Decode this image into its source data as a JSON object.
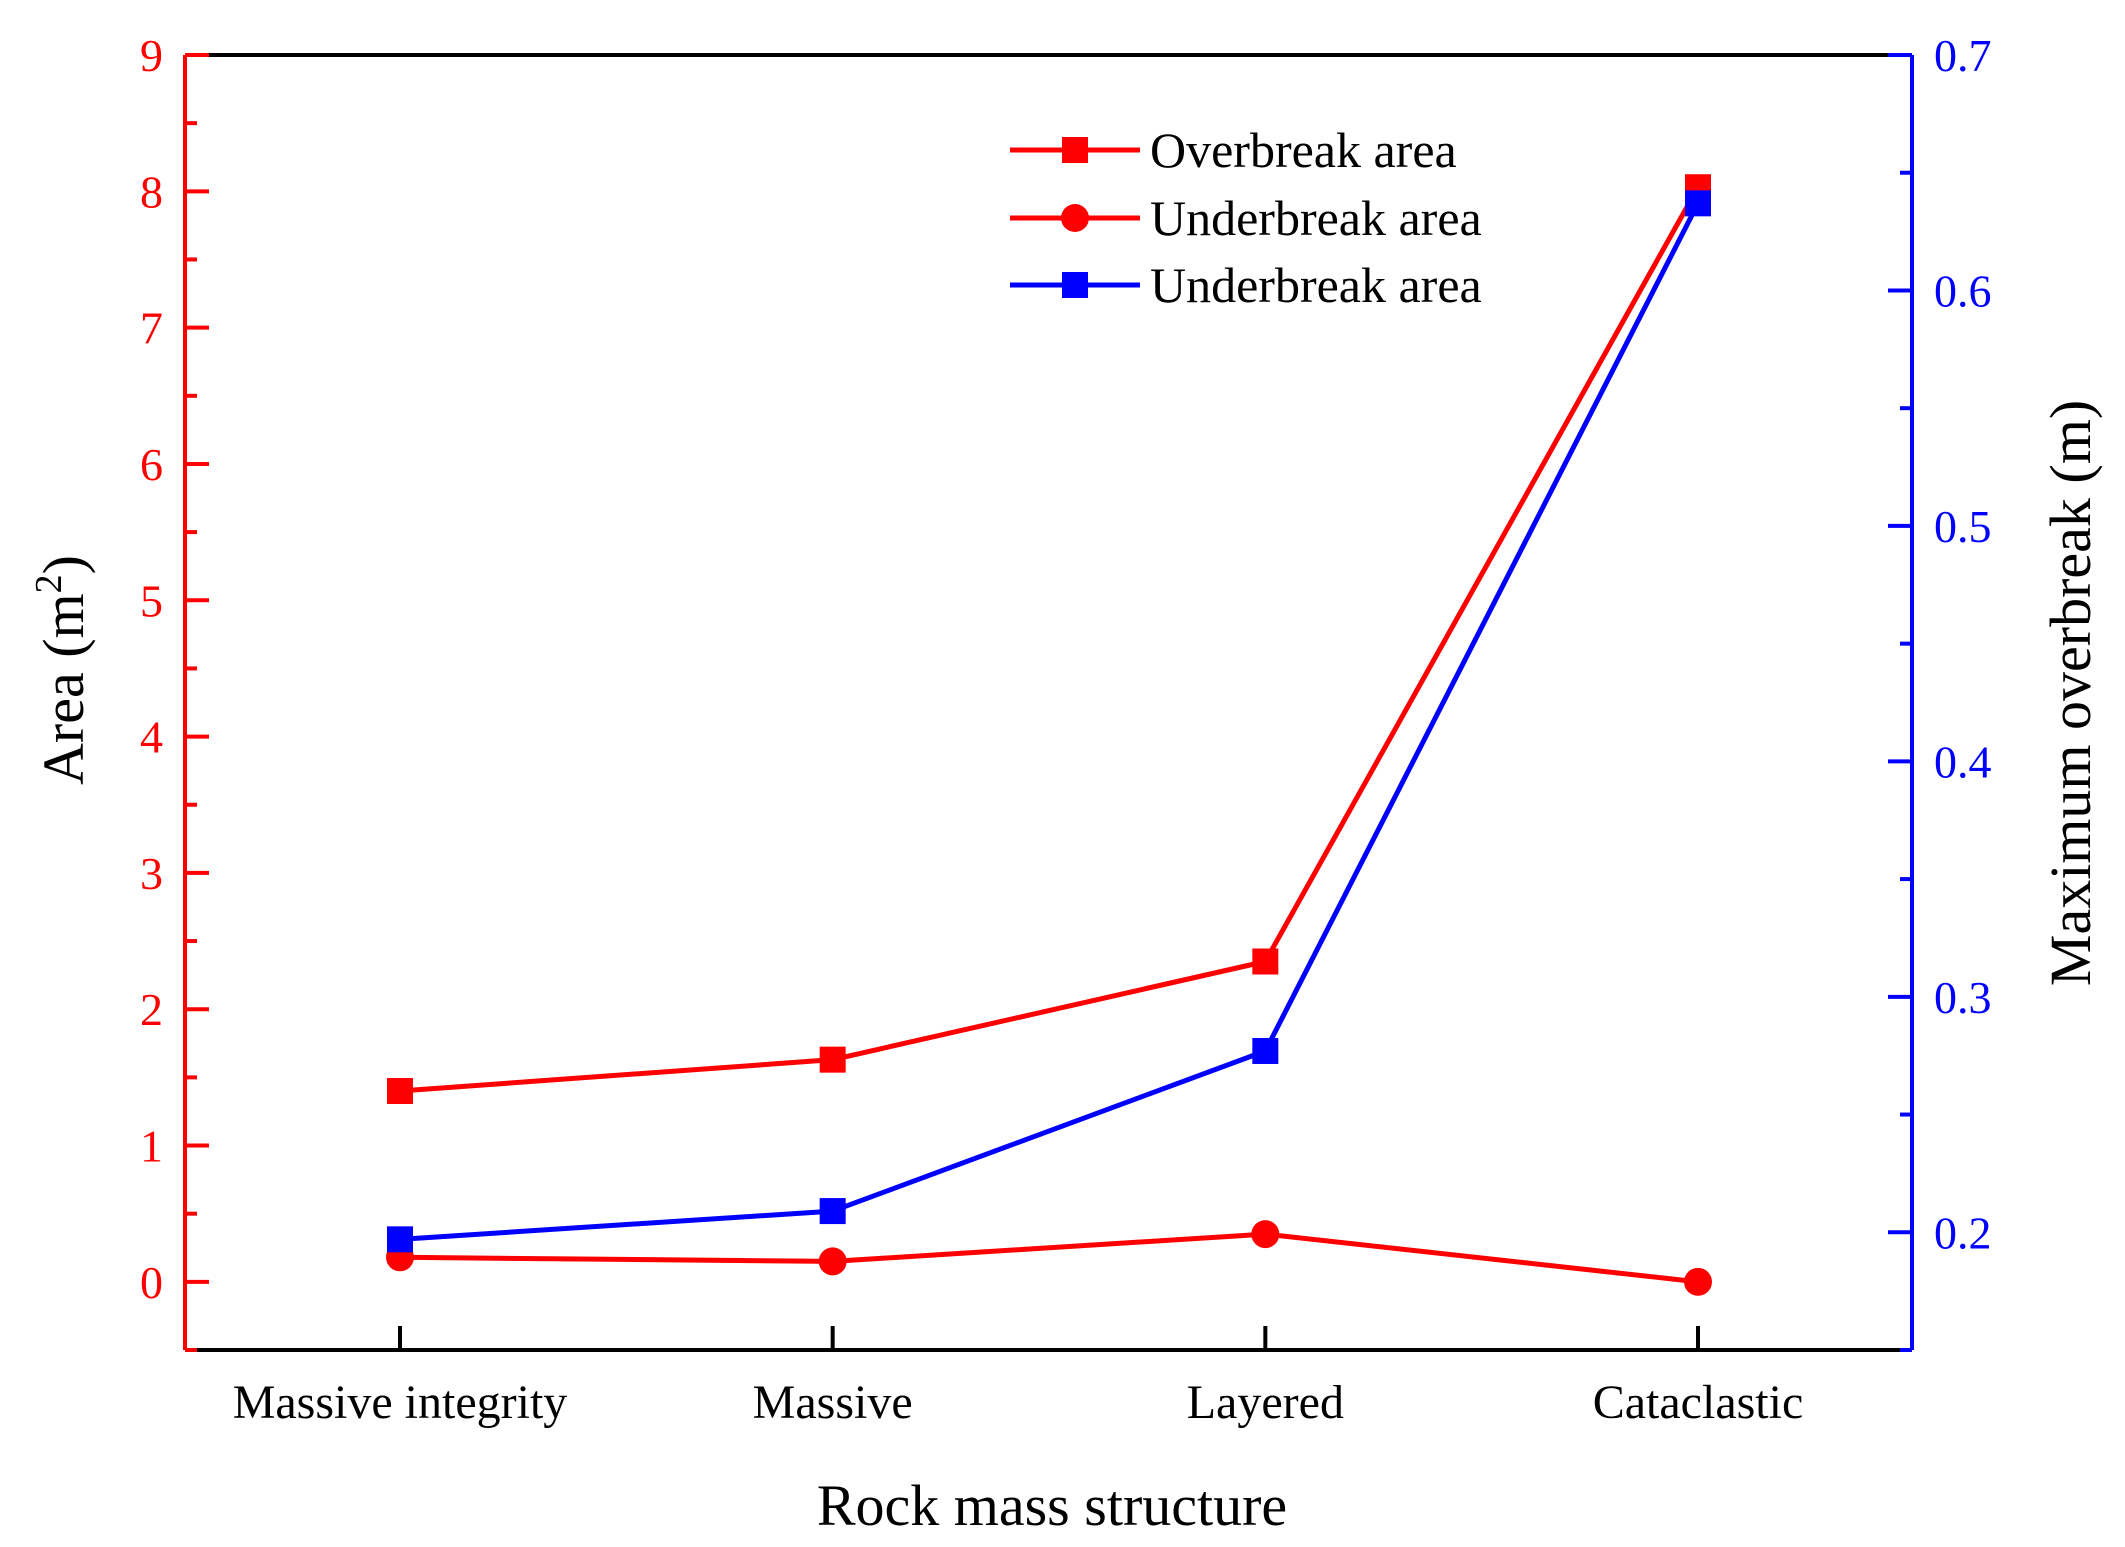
{
  "chart_data": {
    "type": "line",
    "title": "",
    "xlabel": "Rock mass structure",
    "ylabel_left": "Area (m",
    "ylabel_left_sup": "2",
    "ylabel_left_close": ")",
    "ylabel_right": "Maximum overbreak (m)",
    "categories": [
      "Massive integrity",
      "Massive",
      "Layered",
      "Cataclastic"
    ],
    "ylim_left": [
      -0.5,
      9
    ],
    "yticks_left": [
      "0",
      "1",
      "2",
      "3",
      "4",
      "5",
      "6",
      "7",
      "8",
      "9"
    ],
    "ylim_right": [
      0.15,
      0.7
    ],
    "yticks_right": [
      "0.2",
      "0.3",
      "0.4",
      "0.5",
      "0.6",
      "0.7"
    ],
    "grid": false,
    "legend_position": "top-right",
    "colors": {
      "left_axis": "#ff0000",
      "right_axis": "#0000ff",
      "frame": "#000000"
    },
    "series": [
      {
        "name": "Overbreak area",
        "axis": "left",
        "marker": "square",
        "color": "#ff0000",
        "values": [
          1.4,
          1.63,
          2.35,
          8.03
        ]
      },
      {
        "name": "Underbreak area",
        "axis": "left",
        "marker": "circle",
        "color": "#ff0000",
        "values": [
          0.18,
          0.15,
          0.35,
          0.0
        ]
      },
      {
        "name": "Underbreak area",
        "axis": "right",
        "marker": "square",
        "color": "#0000ff",
        "values": [
          0.197,
          0.209,
          0.277,
          0.637
        ]
      }
    ]
  }
}
